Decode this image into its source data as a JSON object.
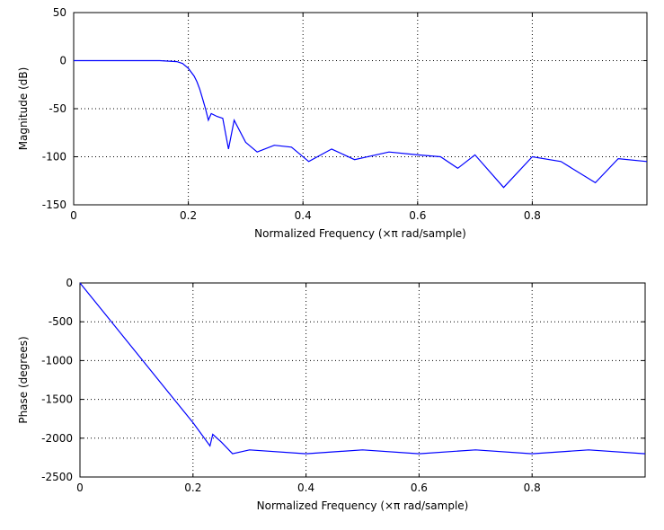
{
  "chart_data": [
    {
      "type": "line",
      "xlabel": "Normalized Frequency  (×π rad/sample)",
      "ylabel": "Magnitude (dB)",
      "xlim": [
        0,
        1
      ],
      "ylim": [
        -150,
        50
      ],
      "xticks": [
        0,
        0.2,
        0.4,
        0.6,
        0.8
      ],
      "xtick_labels": [
        "0",
        "0.2",
        "0.4",
        "0.6",
        "0.8"
      ],
      "yticks": [
        50,
        0,
        -50,
        -100,
        -150
      ],
      "ytick_labels": [
        "50",
        "0",
        "-50",
        "-100",
        "-150"
      ],
      "grid": true,
      "color": "#0000ff",
      "x": [
        0,
        0.05,
        0.1,
        0.15,
        0.18,
        0.19,
        0.2,
        0.21,
        0.215,
        0.22,
        0.225,
        0.23,
        0.235,
        0.24,
        0.25,
        0.26,
        0.27,
        0.28,
        0.3,
        0.32,
        0.35,
        0.38,
        0.41,
        0.45,
        0.49,
        0.55,
        0.6,
        0.64,
        0.67,
        0.7,
        0.75,
        0.8,
        0.85,
        0.91,
        0.95,
        1.0
      ],
      "y": [
        0,
        0,
        0,
        0,
        -1,
        -3,
        -8,
        -16,
        -22,
        -30,
        -40,
        -50,
        -62,
        -55,
        -58,
        -60,
        -92,
        -62,
        -85,
        -95,
        -88,
        -90,
        -105,
        -92,
        -103,
        -95,
        -98,
        -100,
        -112,
        -98,
        -132,
        -100,
        -105,
        -127,
        -102,
        -105
      ],
      "notes_from_figure": []
    },
    {
      "type": "line",
      "xlabel": "Normalized Frequency  (×π rad/sample)",
      "ylabel": "Phase (degrees)",
      "xlim": [
        0,
        1
      ],
      "ylim": [
        -2500,
        0
      ],
      "xticks": [
        0,
        0.2,
        0.4,
        0.6,
        0.8
      ],
      "xtick_labels": [
        "0",
        "0.2",
        "0.4",
        "0.6",
        "0.8"
      ],
      "yticks": [
        0,
        -500,
        -1000,
        -1500,
        -2000,
        -2500
      ],
      "ytick_labels": [
        "0",
        "-500",
        "-1000",
        "-1500",
        "-2000",
        "-2500"
      ],
      "grid": true,
      "color": "#0000ff",
      "x": [
        0,
        0.05,
        0.1,
        0.15,
        0.2,
        0.23,
        0.235,
        0.25,
        0.27,
        0.3,
        0.4,
        0.5,
        0.6,
        0.7,
        0.8,
        0.9,
        1.0
      ],
      "y": [
        0,
        -450,
        -900,
        -1350,
        -1800,
        -2100,
        -1950,
        -2050,
        -2200,
        -2150,
        -2200,
        -2150,
        -2200,
        -2150,
        -2200,
        -2150,
        -2200
      ]
    }
  ]
}
